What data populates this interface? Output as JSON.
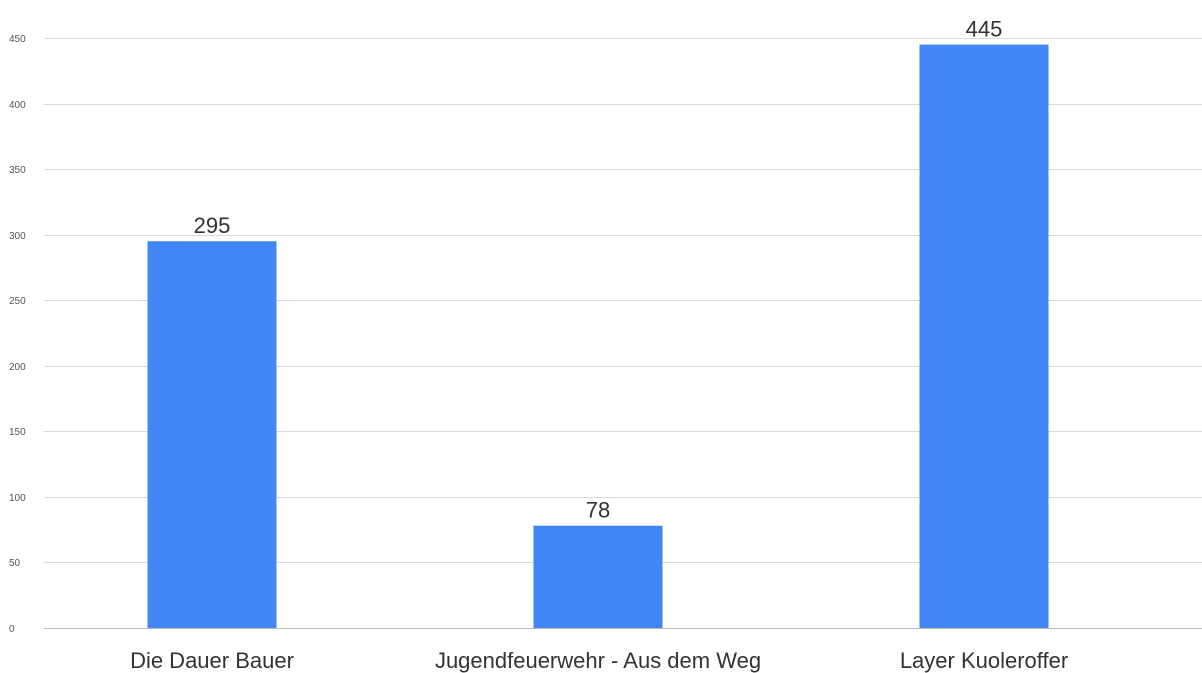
{
  "chart_data": {
    "type": "bar",
    "title": "",
    "xlabel": "",
    "ylabel": "",
    "categories": [
      "Die Dauer Bauer",
      "Jugendfeuerwehr - Aus dem Weg",
      "Layer Kuoleroffer"
    ],
    "values": [
      295,
      78,
      445
    ],
    "data_labels": [
      "295",
      "78",
      "445"
    ],
    "ylim": [
      0,
      450
    ],
    "yticks": [
      0,
      50,
      100,
      150,
      200,
      250,
      300,
      350,
      400,
      450
    ],
    "grid": true,
    "legend": "none",
    "bar_color": "#4285f4"
  }
}
